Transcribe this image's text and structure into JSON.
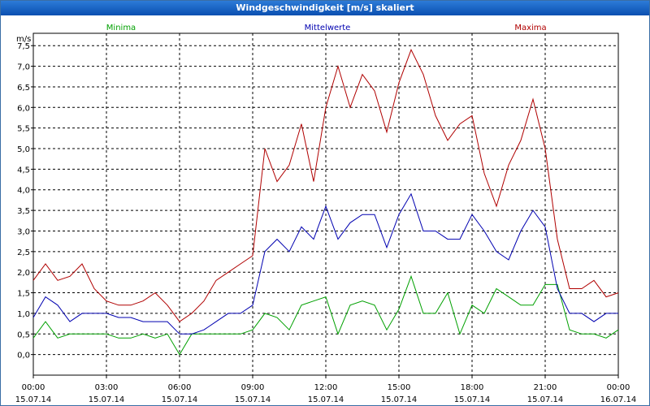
{
  "window": {
    "title": "Windgeschwindigkeit [m/s] skaliert"
  },
  "colors": {
    "minima": "#00a000",
    "mittelwerte": "#0000b0",
    "maxima": "#b00000",
    "grid": "#000000"
  },
  "chart_data": {
    "type": "line",
    "title": "Windgeschwindigkeit [m/s] skaliert",
    "ylabel": "m/s",
    "xlabel": "",
    "ylim": [
      -0.5,
      7.8
    ],
    "yticks": [
      "0,0",
      "0,5",
      "1,0",
      "1,5",
      "2,0",
      "2,5",
      "3,0",
      "3,5",
      "4,0",
      "4,5",
      "5,0",
      "5,5",
      "6,0",
      "6,5",
      "7,0",
      "7,5"
    ],
    "xticks": [
      {
        "time": "00:00",
        "date": "15.07.14"
      },
      {
        "time": "03:00",
        "date": "15.07.14"
      },
      {
        "time": "06:00",
        "date": "15.07.14"
      },
      {
        "time": "09:00",
        "date": "15.07.14"
      },
      {
        "time": "12:00",
        "date": "15.07.14"
      },
      {
        "time": "15:00",
        "date": "15.07.14"
      },
      {
        "time": "18:00",
        "date": "15.07.14"
      },
      {
        "time": "21:00",
        "date": "15.07.14"
      },
      {
        "time": "00:00",
        "date": "16.07.14"
      }
    ],
    "grid": true,
    "series": [
      {
        "name": "Minima",
        "x": [
          "00:00",
          "00:30",
          "01:00",
          "01:30",
          "02:00",
          "02:30",
          "03:00",
          "03:30",
          "04:00",
          "04:30",
          "05:00",
          "05:30",
          "06:00",
          "06:30",
          "07:00",
          "07:30",
          "08:00",
          "08:30",
          "09:00",
          "09:30",
          "10:00",
          "10:30",
          "11:00",
          "11:30",
          "12:00",
          "12:30",
          "13:00",
          "13:30",
          "14:00",
          "14:30",
          "15:00",
          "15:30",
          "16:00",
          "16:30",
          "17:00",
          "17:30",
          "18:00",
          "18:30",
          "19:00",
          "19:30",
          "20:00",
          "20:30",
          "21:00",
          "21:30",
          "22:00",
          "22:30",
          "23:00",
          "23:30",
          "00:00"
        ],
        "values": [
          0.4,
          0.8,
          0.4,
          0.5,
          0.5,
          0.5,
          0.5,
          0.4,
          0.4,
          0.5,
          0.4,
          0.5,
          0.0,
          0.5,
          0.5,
          0.5,
          0.5,
          0.5,
          0.6,
          1.0,
          0.9,
          0.6,
          1.2,
          1.3,
          1.4,
          0.5,
          1.2,
          1.3,
          1.2,
          0.6,
          1.1,
          1.9,
          1.0,
          1.0,
          1.5,
          0.5,
          1.2,
          1.0,
          1.6,
          1.4,
          1.2,
          1.2,
          1.7,
          1.7,
          0.6,
          0.5,
          0.5,
          0.4,
          0.6
        ]
      },
      {
        "name": "Mittelwerte",
        "x": [
          "00:00",
          "00:30",
          "01:00",
          "01:30",
          "02:00",
          "02:30",
          "03:00",
          "03:30",
          "04:00",
          "04:30",
          "05:00",
          "05:30",
          "06:00",
          "06:30",
          "07:00",
          "07:30",
          "08:00",
          "08:30",
          "09:00",
          "09:30",
          "10:00",
          "10:30",
          "11:00",
          "11:30",
          "12:00",
          "12:30",
          "13:00",
          "13:30",
          "14:00",
          "14:30",
          "15:00",
          "15:30",
          "16:00",
          "16:30",
          "17:00",
          "17:30",
          "18:00",
          "18:30",
          "19:00",
          "19:30",
          "20:00",
          "20:30",
          "21:00",
          "21:30",
          "22:00",
          "22:30",
          "23:00",
          "23:30",
          "00:00"
        ],
        "values": [
          0.9,
          1.4,
          1.2,
          0.8,
          1.0,
          1.0,
          1.0,
          0.9,
          0.9,
          0.8,
          0.8,
          0.8,
          0.5,
          0.5,
          0.6,
          0.8,
          1.0,
          1.0,
          1.2,
          2.5,
          2.8,
          2.5,
          3.1,
          2.8,
          3.6,
          2.8,
          3.2,
          3.4,
          3.4,
          2.6,
          3.4,
          3.9,
          3.0,
          3.0,
          2.8,
          2.8,
          3.4,
          3.0,
          2.5,
          2.3,
          3.0,
          3.5,
          3.1,
          1.6,
          1.0,
          1.0,
          0.8,
          1.0,
          1.0
        ]
      },
      {
        "name": "Maxima",
        "x": [
          "00:00",
          "00:30",
          "01:00",
          "01:30",
          "02:00",
          "02:30",
          "03:00",
          "03:30",
          "04:00",
          "04:30",
          "05:00",
          "05:30",
          "06:00",
          "06:30",
          "07:00",
          "07:30",
          "08:00",
          "08:30",
          "09:00",
          "09:30",
          "10:00",
          "10:30",
          "11:00",
          "11:30",
          "12:00",
          "12:30",
          "13:00",
          "13:30",
          "14:00",
          "14:30",
          "15:00",
          "15:30",
          "16:00",
          "16:30",
          "17:00",
          "17:30",
          "18:00",
          "18:30",
          "19:00",
          "19:30",
          "20:00",
          "20:30",
          "21:00",
          "21:30",
          "22:00",
          "22:30",
          "23:00",
          "23:30",
          "00:00"
        ],
        "values": [
          1.8,
          2.2,
          1.8,
          1.9,
          2.2,
          1.6,
          1.3,
          1.2,
          1.2,
          1.3,
          1.5,
          1.2,
          0.8,
          1.0,
          1.3,
          1.8,
          2.0,
          2.2,
          2.4,
          5.0,
          4.2,
          4.6,
          5.6,
          4.2,
          6.0,
          7.0,
          6.0,
          6.8,
          6.4,
          5.4,
          6.6,
          7.4,
          6.8,
          5.8,
          5.2,
          5.6,
          5.8,
          4.4,
          3.6,
          4.6,
          5.2,
          6.2,
          5.0,
          2.8,
          1.6,
          1.6,
          1.8,
          1.4,
          1.5
        ]
      }
    ]
  }
}
